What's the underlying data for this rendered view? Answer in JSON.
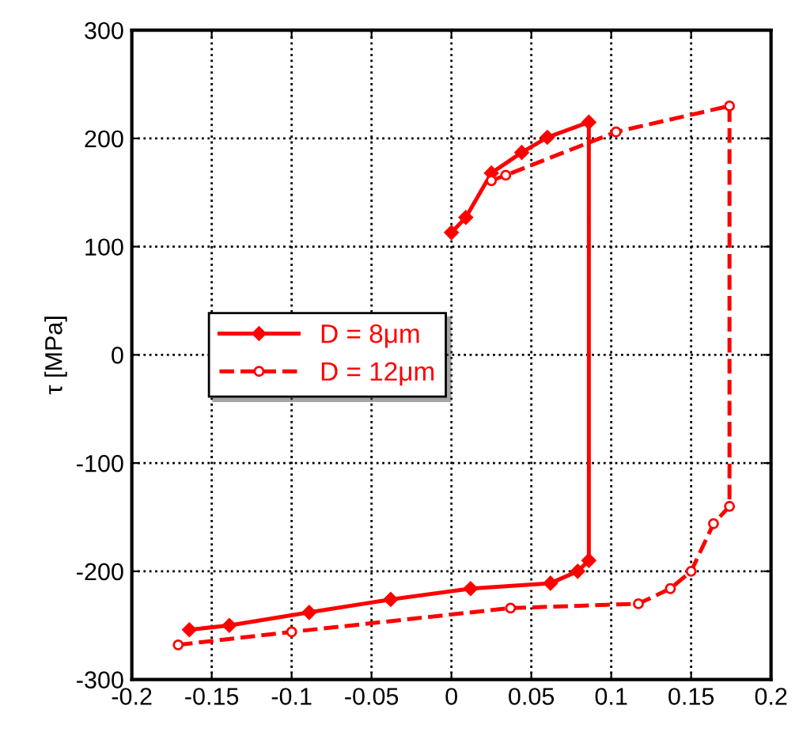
{
  "chart_data": {
    "type": "line",
    "ylabel": "τ [MPa]",
    "xlim": [
      -0.2,
      0.2
    ],
    "xticks": [
      -0.2,
      -0.15,
      -0.1,
      -0.05,
      0,
      0.05,
      0.1,
      0.15,
      0.2
    ],
    "ylim": [
      -300,
      300
    ],
    "yticks": [
      -300,
      -200,
      -100,
      0,
      100,
      200,
      300
    ],
    "grid": true,
    "legend": "left",
    "series": [
      {
        "name": "D = 8μm",
        "color": "#ff0000",
        "line_style": "solid",
        "marker": "diamond",
        "x": [
          0,
          0.009,
          0.025,
          0.044,
          0.06,
          0.086,
          0.086,
          0.079,
          0.062,
          0.012,
          -0.038,
          -0.089,
          -0.139,
          -0.164
        ],
        "values": [
          113,
          127,
          168,
          187,
          201,
          215,
          -190,
          -200,
          -211,
          -216,
          -226,
          -238,
          -250,
          -254
        ]
      },
      {
        "name": "D = 12μm",
        "color": "#ff0000",
        "line_style": "dashed",
        "marker": "circle",
        "x": [
          0.025,
          0.034,
          0.103,
          0.174,
          0.174,
          0.164,
          0.15,
          0.137,
          0.117,
          0.037,
          -0.1,
          -0.171
        ],
        "values": [
          161,
          166,
          206,
          230,
          -140,
          -156,
          -200,
          -216,
          -230,
          -234,
          -256,
          -268
        ]
      }
    ]
  }
}
